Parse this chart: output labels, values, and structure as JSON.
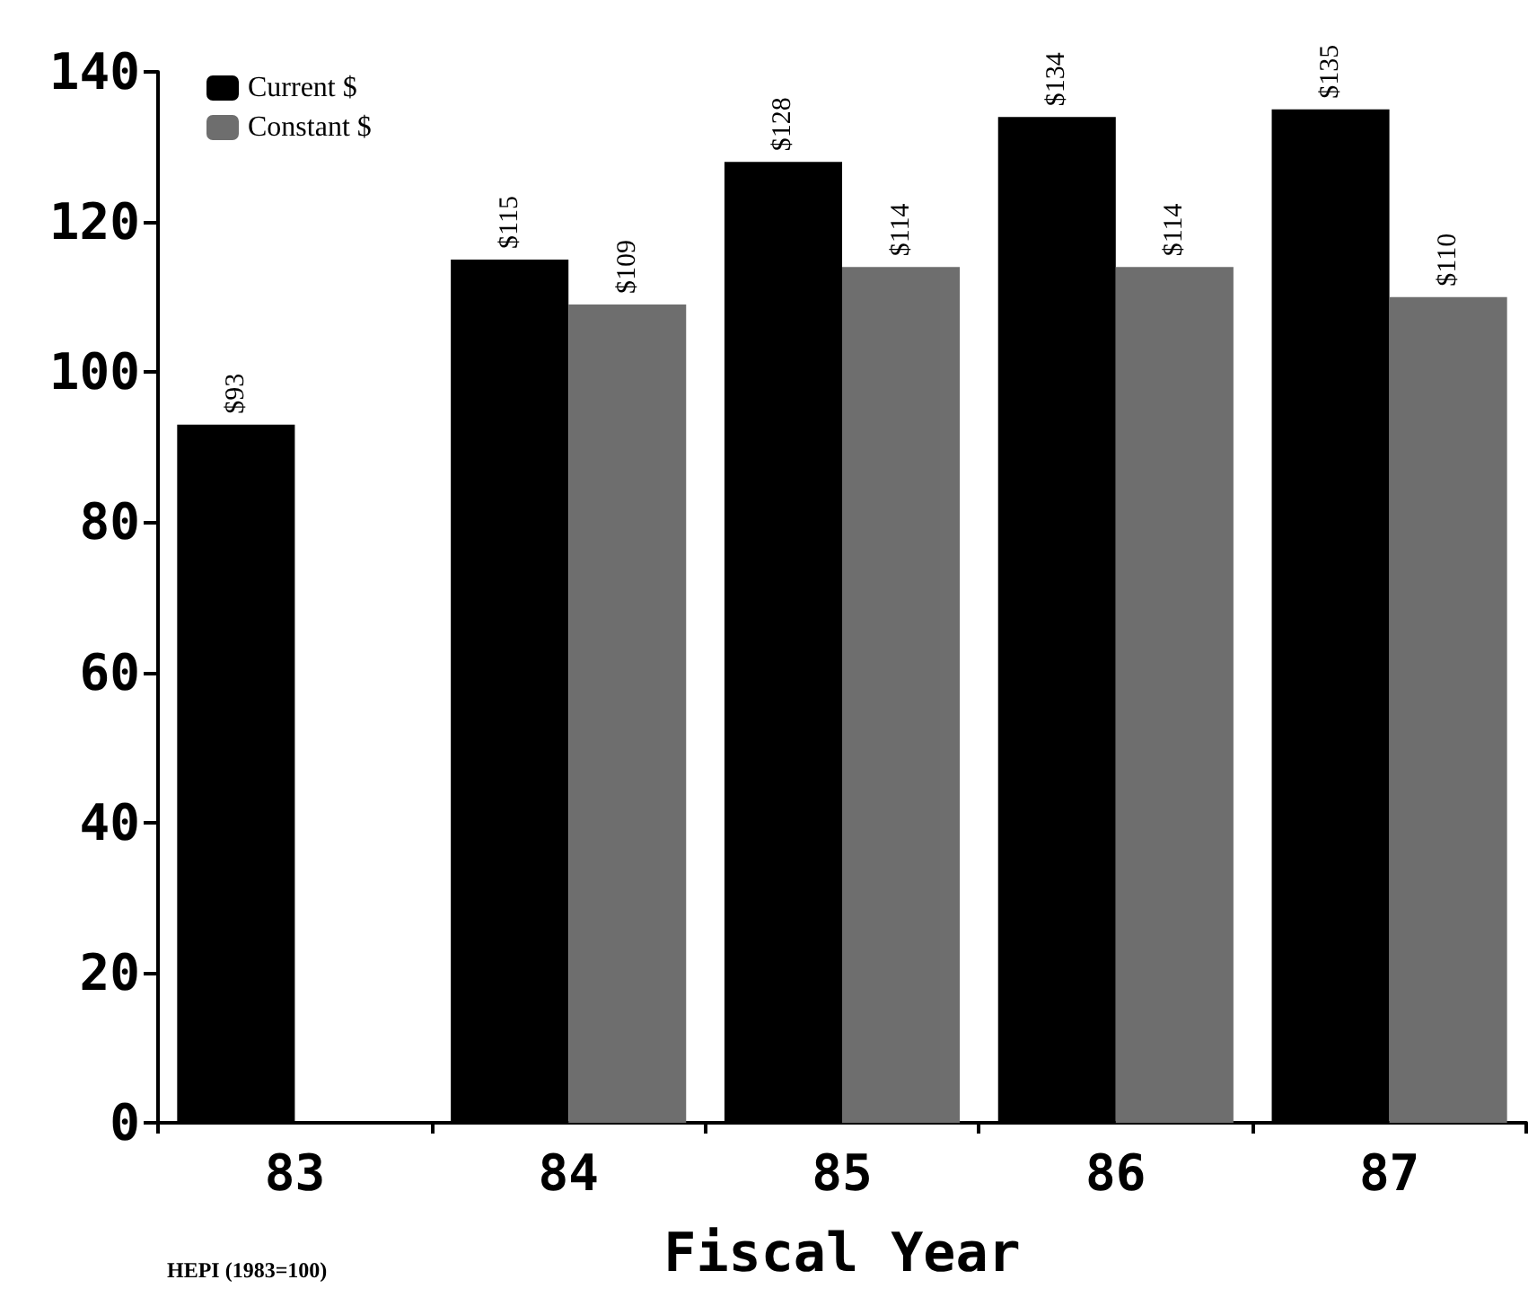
{
  "chart_data": {
    "type": "bar",
    "xlabel": "Fiscal Year",
    "categories": [
      "83",
      "84",
      "85",
      "86",
      "87"
    ],
    "series": [
      {
        "name": "Current $",
        "color": "#000000",
        "values": [
          93,
          115,
          128,
          134,
          135
        ],
        "value_labels": [
          "$93",
          "$115",
          "$128",
          "$134",
          "$135"
        ]
      },
      {
        "name": "Constant $",
        "color": "#6e6e6e",
        "values": [
          null,
          109,
          114,
          114,
          110
        ],
        "value_labels": [
          null,
          "$109",
          "$114",
          "$114",
          "$110"
        ]
      }
    ],
    "ylim": [
      0,
      140
    ],
    "yticks": [
      0,
      20,
      40,
      60,
      80,
      100,
      120,
      140
    ],
    "grid": false,
    "legend": "top left",
    "annotations": [
      "HEPI (1983=100)"
    ]
  }
}
